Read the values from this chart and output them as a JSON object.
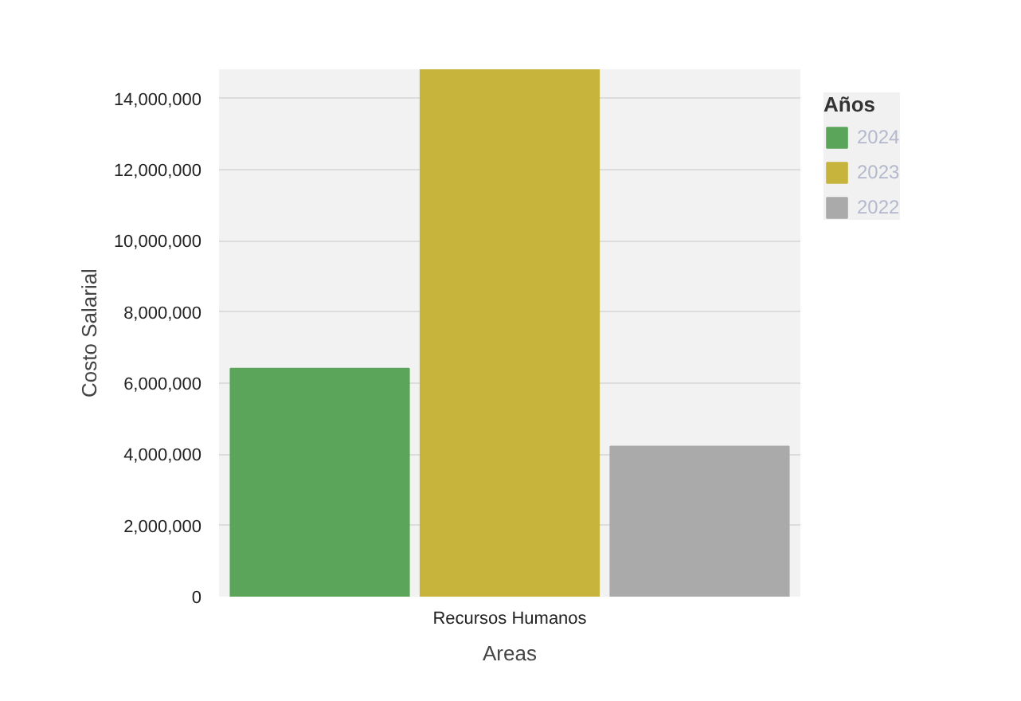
{
  "chart_data": {
    "type": "bar",
    "xlabel": "Areas",
    "ylabel": "Costo Salarial",
    "legend_title": "Años",
    "categories": [
      "Recursos Humanos"
    ],
    "series": [
      {
        "name": "2024",
        "color": "#5ba55b",
        "values": [
          6410000
        ]
      },
      {
        "name": "2023",
        "color": "#c6b43c",
        "values": [
          14820000
        ]
      },
      {
        "name": "2022",
        "color": "#aaaaaa",
        "values": [
          4220000
        ]
      }
    ],
    "ylim": [
      0,
      14820000
    ],
    "yticks": [
      {
        "value": 0,
        "label": "0"
      },
      {
        "value": 2000000,
        "label": "2,000,000"
      },
      {
        "value": 4000000,
        "label": "4,000,000"
      },
      {
        "value": 6000000,
        "label": "6,000,000"
      },
      {
        "value": 8000000,
        "label": "8,000,000"
      },
      {
        "value": 10000000,
        "label": "10,000,000"
      },
      {
        "value": 12000000,
        "label": "12,000,000"
      },
      {
        "value": 14000000,
        "label": "14,000,000"
      }
    ],
    "grid": "y",
    "legend": "top right"
  }
}
